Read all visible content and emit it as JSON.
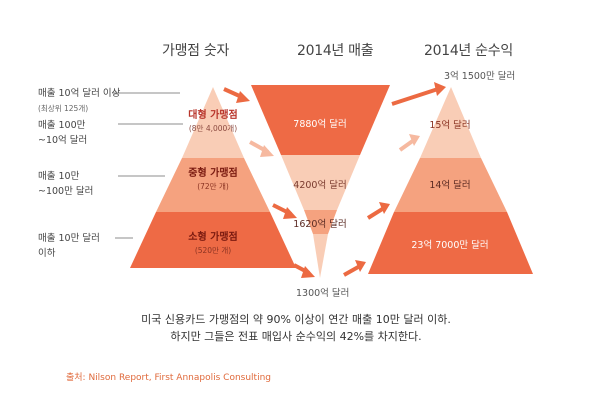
{
  "columns": {
    "merchants": "가맹점 숫자",
    "revenue": "2014년 매출",
    "profit": "2014년 순수익"
  },
  "tiers": [
    {
      "label_line1": "매출 10억 달러 이상",
      "label_line2": "(최상위 125개)"
    },
    {
      "label_line1": "매출 100만",
      "label_line2": "~10억 달러"
    },
    {
      "label_line1": "매출 10만",
      "label_line2": "~100만 달러"
    },
    {
      "label_line1": "매출 10만 달러",
      "label_line2": "이하"
    }
  ],
  "merchant_pyramid": [
    {
      "name": "대형 가맹점",
      "count": "(8만 4,000개)"
    },
    {
      "name": "중형 가맹점",
      "count": "(72만 개)"
    },
    {
      "name": "소형 가맹점",
      "count": "(520만 개)"
    }
  ],
  "revenue_funnel": [
    {
      "value": "7880억 달러"
    },
    {
      "value": "4200억 달러"
    },
    {
      "value": "1620억 달러"
    },
    {
      "value": "1300억 달러"
    }
  ],
  "profit_pyramid": [
    {
      "value": "3억 1500만 달러"
    },
    {
      "value": "15억 달러"
    },
    {
      "value": "14억 달러"
    },
    {
      "value": "23억 7000만 달러"
    }
  ],
  "caption": {
    "line1": "미국 신용카드 가맹점의 약 90% 이상이 연간 매출 10만 달러 이하.",
    "line2": "하지만 그들은 전표 매입사 순수익의 42%를 차지한다."
  },
  "source": "출처: Nilson Report, First Annapolis Consulting",
  "colors": {
    "dark": "#ee6a45",
    "mid": "#f5a27f",
    "light": "#f9cdb6",
    "arrow": "#ec6a42",
    "arrow_light": "#f6b9a0"
  }
}
